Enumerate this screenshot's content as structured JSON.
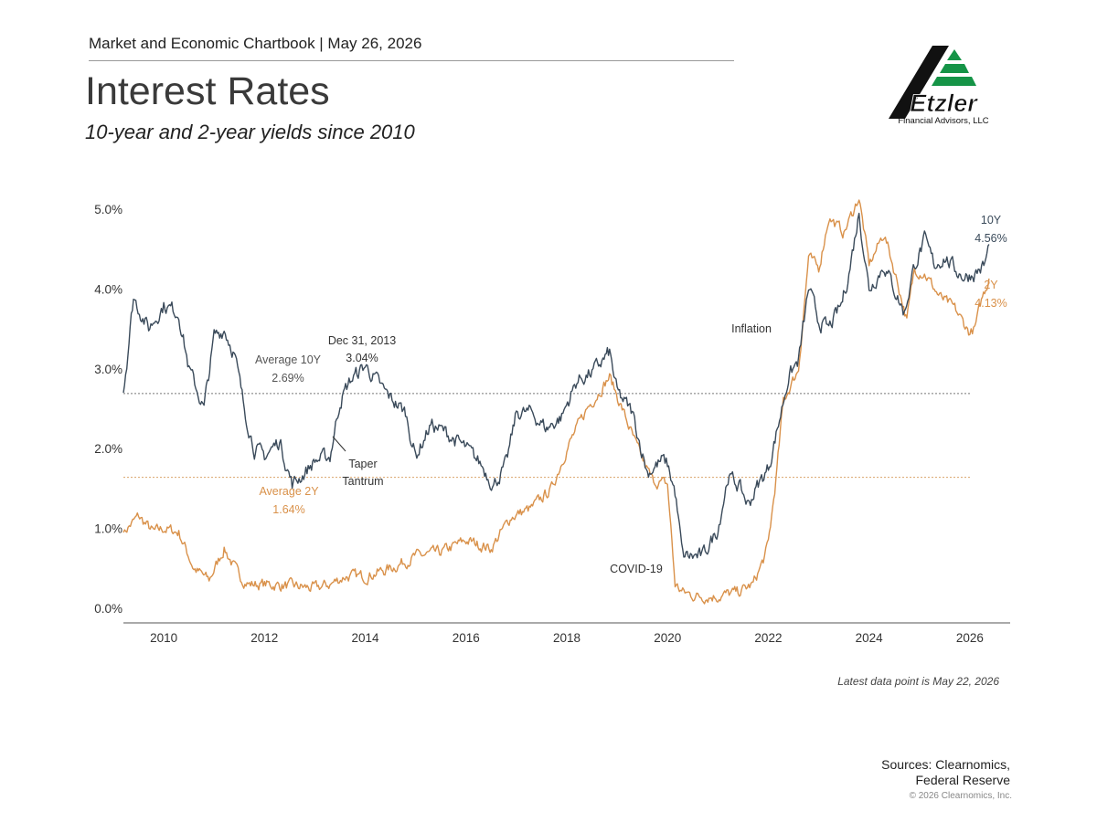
{
  "header": {
    "chartbook": "Market and Economic Chartbook | May 26, 2026",
    "title": "Interest Rates",
    "subtitle": "10-year and 2-year yields since 2010"
  },
  "logo": {
    "name": "Etzler",
    "tagline": "Financial Advisors, LLC"
  },
  "colors": {
    "ten_year": "#3a4a5a",
    "two_year": "#d9914a",
    "avg10_line": "#777777",
    "avg2_line": "#d9a36a"
  },
  "chart_data": {
    "type": "line",
    "xlabel": "",
    "ylabel": "",
    "xlim": [
      2009.2,
      2026.8
    ],
    "ylim": [
      0,
      5
    ],
    "x_ticks": [
      "2010",
      "2012",
      "2014",
      "2016",
      "2018",
      "2020",
      "2022",
      "2024",
      "2026"
    ],
    "y_ticks": [
      "0.0%",
      "1.0%",
      "2.0%",
      "3.0%",
      "4.0%",
      "5.0%"
    ],
    "series": [
      {
        "name": "10Y",
        "end_label": "4.56%",
        "x": [
          2009.2,
          2009.4,
          2009.7,
          2010.0,
          2010.3,
          2010.5,
          2010.8,
          2011.0,
          2011.2,
          2011.4,
          2011.6,
          2011.8,
          2012.0,
          2012.3,
          2012.55,
          2012.8,
          2013.0,
          2013.3,
          2013.5,
          2013.7,
          2014.0,
          2014.4,
          2014.8,
          2015.0,
          2015.3,
          2015.6,
          2016.0,
          2016.3,
          2016.55,
          2016.8,
          2017.0,
          2017.3,
          2017.6,
          2017.9,
          2018.2,
          2018.5,
          2018.85,
          2019.0,
          2019.3,
          2019.6,
          2019.9,
          2020.0,
          2020.15,
          2020.3,
          2020.5,
          2020.7,
          2021.0,
          2021.2,
          2021.4,
          2021.6,
          2021.8,
          2022.0,
          2022.2,
          2022.4,
          2022.6,
          2022.8,
          2023.0,
          2023.2,
          2023.45,
          2023.6,
          2023.8,
          2024.0,
          2024.3,
          2024.5,
          2024.7,
          2024.9,
          2025.1,
          2025.3,
          2025.5,
          2025.7,
          2025.9,
          2026.1,
          2026.3,
          2026.38
        ],
        "values": [
          2.7,
          3.9,
          3.5,
          3.8,
          3.7,
          3.0,
          2.5,
          3.4,
          3.5,
          3.2,
          2.5,
          2.0,
          1.9,
          2.1,
          1.55,
          1.7,
          1.85,
          1.9,
          2.6,
          2.85,
          3.04,
          2.7,
          2.45,
          1.9,
          2.3,
          2.2,
          2.0,
          1.8,
          1.55,
          1.8,
          2.45,
          2.45,
          2.25,
          2.4,
          2.85,
          2.95,
          3.2,
          2.7,
          2.45,
          1.7,
          1.85,
          1.8,
          1.45,
          0.65,
          0.65,
          0.65,
          1.0,
          1.65,
          1.55,
          1.3,
          1.55,
          1.75,
          2.3,
          2.9,
          3.1,
          4.0,
          3.6,
          3.5,
          3.8,
          4.2,
          4.95,
          4.0,
          4.3,
          4.0,
          3.7,
          4.3,
          4.6,
          4.3,
          4.4,
          4.25,
          4.15,
          4.2,
          4.3,
          4.56
        ]
      },
      {
        "name": "2Y",
        "end_label": "4.13%",
        "x": [
          2009.2,
          2009.5,
          2009.8,
          2010.0,
          2010.3,
          2010.6,
          2010.9,
          2011.2,
          2011.5,
          2011.7,
          2012.0,
          2012.5,
          2013.0,
          2013.3,
          2013.6,
          2014.0,
          2014.5,
          2015.0,
          2015.5,
          2016.0,
          2016.5,
          2016.9,
          2017.3,
          2017.7,
          2018.0,
          2018.4,
          2018.85,
          2019.1,
          2019.4,
          2019.7,
          2020.0,
          2020.15,
          2020.3,
          2020.6,
          2021.0,
          2021.4,
          2021.7,
          2021.9,
          2022.0,
          2022.15,
          2022.3,
          2022.6,
          2022.8,
          2023.0,
          2023.2,
          2023.5,
          2023.8,
          2024.0,
          2024.3,
          2024.6,
          2024.75,
          2024.9,
          2025.1,
          2025.4,
          2025.7,
          2026.0,
          2026.1,
          2026.25,
          2026.38
        ],
        "values": [
          0.95,
          1.15,
          0.95,
          1.0,
          0.95,
          0.5,
          0.35,
          0.75,
          0.4,
          0.3,
          0.3,
          0.28,
          0.25,
          0.3,
          0.4,
          0.4,
          0.5,
          0.65,
          0.7,
          0.85,
          0.75,
          1.15,
          1.25,
          1.5,
          2.0,
          2.5,
          2.9,
          2.5,
          2.0,
          1.6,
          1.55,
          0.3,
          0.2,
          0.15,
          0.15,
          0.2,
          0.3,
          0.6,
          0.8,
          1.6,
          2.6,
          3.0,
          4.4,
          4.25,
          4.9,
          4.7,
          5.15,
          4.3,
          4.7,
          4.0,
          3.6,
          4.25,
          4.2,
          3.9,
          3.75,
          3.45,
          3.5,
          3.9,
          4.13
        ]
      }
    ],
    "reference_lines": [
      {
        "name": "Average 10Y",
        "label": "Average 10Y",
        "value_label": "2.69%",
        "value": 2.69
      },
      {
        "name": "Average 2Y",
        "label": "Average 2Y",
        "value_label": "1.64%",
        "value": 1.64
      }
    ],
    "annotations": [
      {
        "text": "Dec 31, 2013",
        "subtext": "3.04%",
        "x": 2013.99,
        "y": 3.04
      },
      {
        "text": "Taper",
        "subtext": "Tantrum",
        "x": 2013.4,
        "y": 2.0
      },
      {
        "text": "COVID-19",
        "x": 2020.2,
        "y": 0.55
      },
      {
        "text": "Inflation",
        "x": 2022.5,
        "y": 3.5
      }
    ],
    "grid": false
  },
  "footer": {
    "note": "Latest data point is May 22, 2026",
    "sources_line1": "Sources: Clearnomics,",
    "sources_line2": "Federal Reserve",
    "copyright": "© 2026 Clearnomics, Inc."
  }
}
